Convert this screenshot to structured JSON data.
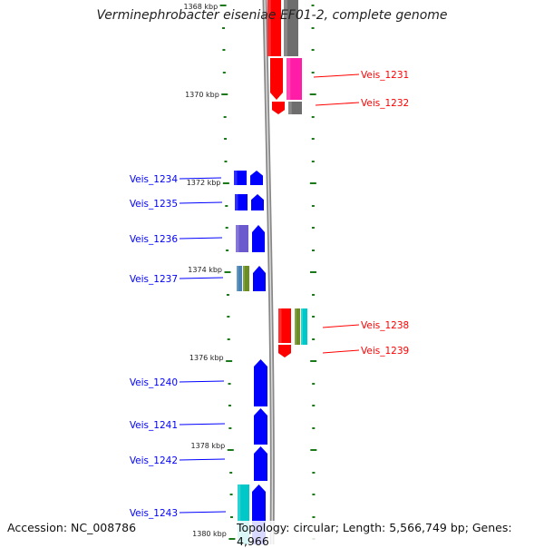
{
  "title": "Verminephrobacter eiseniae EF01-2, complete genome",
  "footer": {
    "accession": "Accession: NC_008786",
    "topology": "Topology: circular; Length: 5,566,749 bp; Genes: 4,966"
  },
  "ticks": [
    "1368 kbp",
    "1370 kbp",
    "1372 kbp",
    "1374 kbp",
    "1376 kbp",
    "1378 kbp",
    "1380 kbp"
  ],
  "genes_left": [
    "Veis_1234",
    "Veis_1235",
    "Veis_1236",
    "Veis_1237",
    "Veis_1240",
    "Veis_1241",
    "Veis_1242",
    "Veis_1243"
  ],
  "genes_right": [
    "Veis_1231",
    "Veis_1232",
    "Veis_1238",
    "Veis_1239"
  ],
  "colors": {
    "forward": "#ff0000",
    "reverse": "#0000ff",
    "backbone": "#888888",
    "tick_mark": "#1a7a1a",
    "magenta": "#ff1ca6",
    "cyan": "#00c8c8",
    "purple": "#6a5acd",
    "olive": "#6b8e23",
    "steel": "#4682b4",
    "gray": "#6e6e6e"
  }
}
